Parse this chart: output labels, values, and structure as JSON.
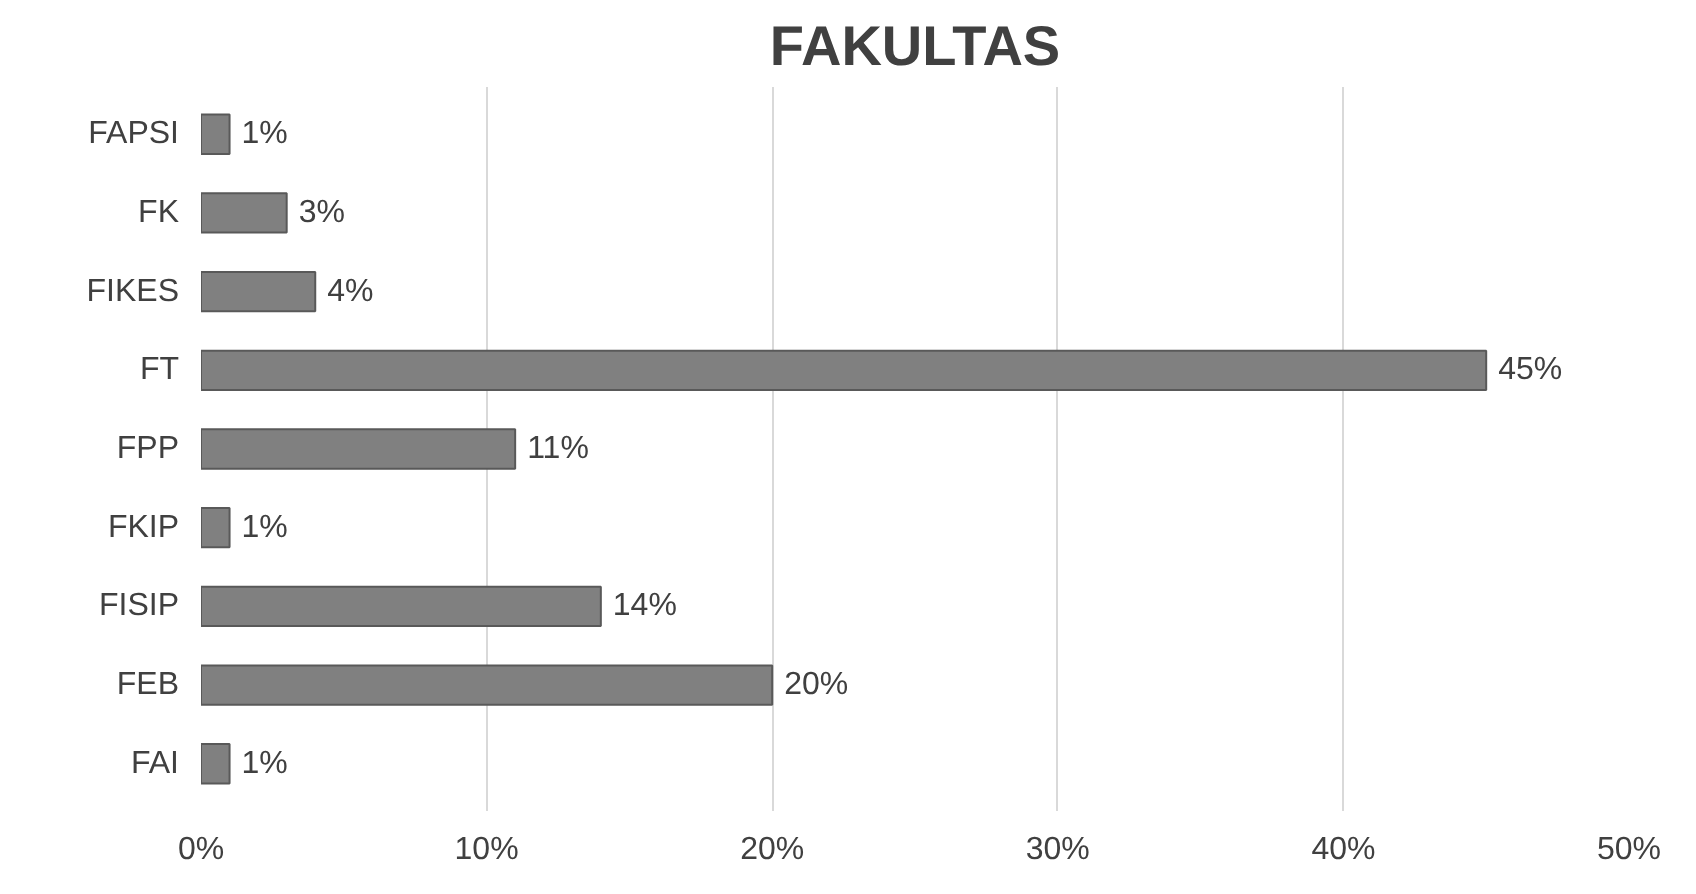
{
  "chart_data": {
    "type": "bar",
    "orientation": "horizontal",
    "title": "FAKULTAS",
    "categories": [
      "FAPSI",
      "FK",
      "FIKES",
      "FT",
      "FPP",
      "FKIP",
      "FISIP",
      "FEB",
      "FAI"
    ],
    "values": [
      1,
      3,
      4,
      45,
      11,
      1,
      14,
      20,
      1
    ],
    "value_labels": [
      "1%",
      "3%",
      "4%",
      "45%",
      "11%",
      "1%",
      "14%",
      "20%",
      "1%"
    ],
    "color": "#808080",
    "xlim": [
      0,
      50
    ],
    "xticks": [
      {
        "value": 0,
        "label": "0%"
      },
      {
        "value": 10,
        "label": "10%"
      },
      {
        "value": 20,
        "label": "20%"
      },
      {
        "value": 30,
        "label": "30%"
      },
      {
        "value": 40,
        "label": "40%"
      },
      {
        "value": 50,
        "label": "50%"
      }
    ],
    "grid": "x"
  }
}
